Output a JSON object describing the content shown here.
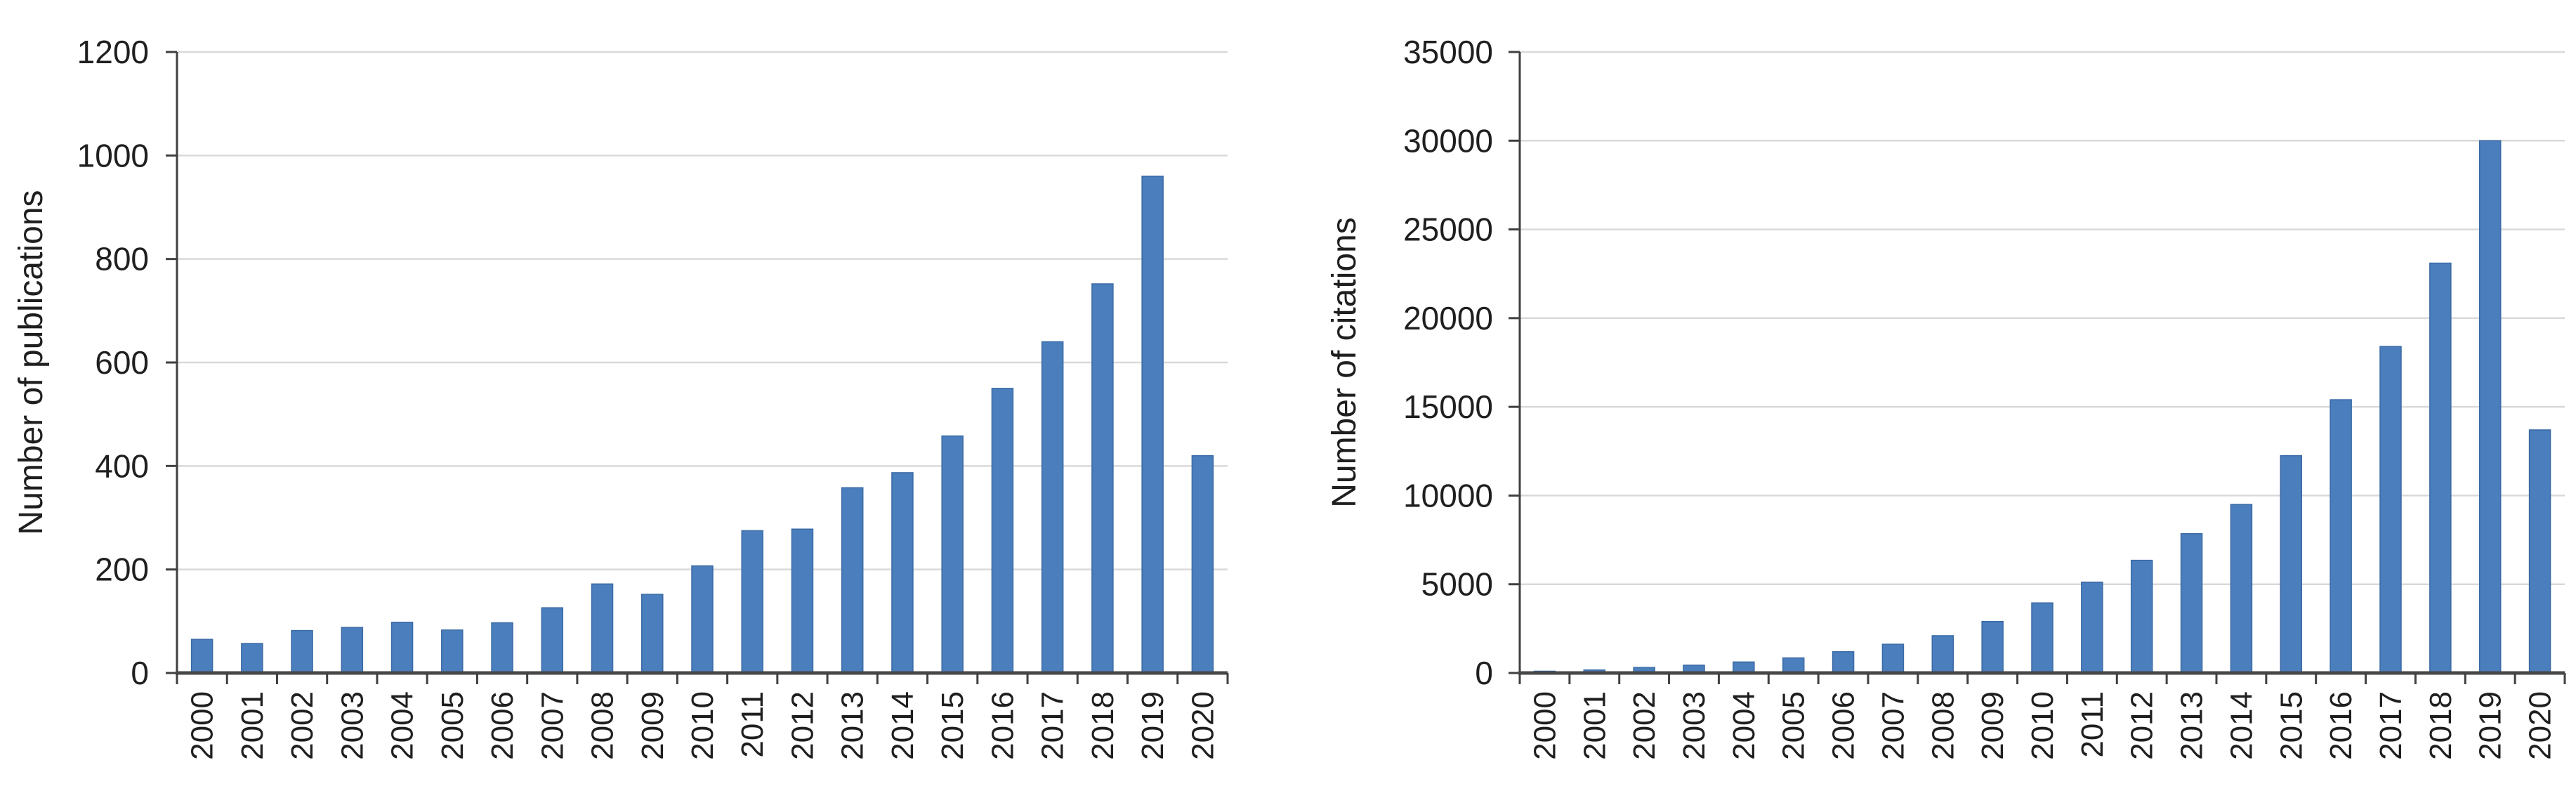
{
  "figure": {
    "background": "#ffffff",
    "description_left_axis": "Number of publications",
    "description_right_axis": "Number of citations"
  },
  "chart_data": [
    {
      "id": "publications",
      "type": "bar",
      "title": "",
      "ylabel": "Number of publications",
      "xlabel": "",
      "categories": [
        "2000",
        "2001",
        "2002",
        "2003",
        "2004",
        "2005",
        "2006",
        "2007",
        "2008",
        "2009",
        "2010",
        "2011",
        "2012",
        "2013",
        "2014",
        "2015",
        "2016",
        "2017",
        "2018",
        "2019",
        "2020"
      ],
      "values": [
        65,
        57,
        82,
        88,
        98,
        83,
        97,
        126,
        172,
        152,
        207,
        275,
        278,
        358,
        387,
        458,
        550,
        640,
        752,
        960,
        420
      ],
      "ylim": [
        0,
        1200
      ],
      "ytick_step": 200,
      "ytick_labels": [
        "0",
        "200",
        "400",
        "600",
        "800",
        "1000",
        "1200"
      ],
      "grid": true,
      "legend_position": "none",
      "bar_color": "#4b7ebc",
      "bar_border_color": "#3a6aa5",
      "gridline_color": "#d9d9d9",
      "axis_color": "#404040",
      "baseline_color": "#474747",
      "text_color": "#1f1f1f"
    },
    {
      "id": "citations",
      "type": "bar",
      "title": "",
      "ylabel": "Number of citations",
      "xlabel": "",
      "categories": [
        "2000",
        "2001",
        "2002",
        "2003",
        "2004",
        "2005",
        "2006",
        "2007",
        "2008",
        "2009",
        "2010",
        "2011",
        "2012",
        "2013",
        "2014",
        "2015",
        "2016",
        "2017",
        "2018",
        "2019",
        "2020"
      ],
      "values": [
        100,
        170,
        310,
        440,
        620,
        850,
        1200,
        1620,
        2100,
        2900,
        3950,
        5120,
        6350,
        7850,
        9500,
        12250,
        15400,
        18400,
        23100,
        30000,
        13700
      ],
      "ylim": [
        0,
        35000
      ],
      "ytick_step": 5000,
      "ytick_labels": [
        "0",
        "5000",
        "10000",
        "15000",
        "20000",
        "25000",
        "30000",
        "35000"
      ],
      "grid": true,
      "legend_position": "none",
      "bar_color": "#4b7ebc",
      "bar_border_color": "#3a6aa5",
      "gridline_color": "#d9d9d9",
      "axis_color": "#404040",
      "baseline_color": "#474747",
      "text_color": "#1f1f1f"
    }
  ]
}
